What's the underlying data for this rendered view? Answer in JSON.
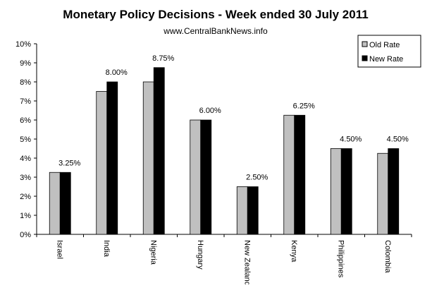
{
  "chart_data": {
    "type": "bar",
    "title": "Monetary Policy Decisions - Week ended  30 July 2011",
    "subtitle": "www.CentralBankNews.info",
    "categories": [
      "Israel",
      "India",
      "Nigeria",
      "Hungary",
      "New Zealand",
      "Kenya",
      "Philippines",
      "Colombia"
    ],
    "series": [
      {
        "name": "Old Rate",
        "color": "#c0c0c0",
        "values": [
          3.25,
          7.5,
          8.0,
          6.0,
          2.5,
          6.25,
          4.5,
          4.25
        ]
      },
      {
        "name": "New Rate",
        "color": "#000000",
        "values": [
          3.25,
          8.0,
          8.75,
          6.0,
          2.5,
          6.25,
          4.5,
          4.5
        ],
        "value_labels": [
          "3.25%",
          "8.00%",
          "8.75%",
          "6.00%",
          "2.50%",
          "6.25%",
          "4.50%",
          "4.50%"
        ]
      }
    ],
    "ylim": [
      0,
      10
    ],
    "yticks": [
      {
        "value": 0,
        "label": "0%"
      },
      {
        "value": 1,
        "label": "1%"
      },
      {
        "value": 2,
        "label": "2%"
      },
      {
        "value": 3,
        "label": "3%"
      },
      {
        "value": 4,
        "label": "4%"
      },
      {
        "value": 5,
        "label": "5%"
      },
      {
        "value": 6,
        "label": "6%"
      },
      {
        "value": 7,
        "label": "7%"
      },
      {
        "value": 8,
        "label": "8%"
      },
      {
        "value": 9,
        "label": "9%"
      },
      {
        "value": 10,
        "label": "10%"
      }
    ],
    "legend": "top-right"
  }
}
